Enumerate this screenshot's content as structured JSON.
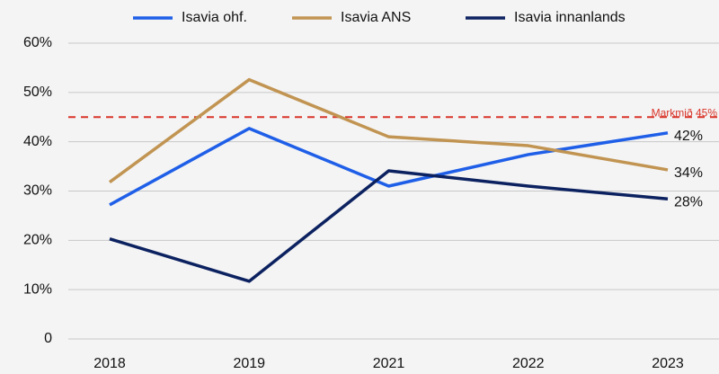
{
  "chart_data": {
    "type": "line",
    "categories": [
      "2018",
      "2019",
      "2021",
      "2022",
      "2023"
    ],
    "series": [
      {
        "name": "Isavia ohf.",
        "color": "#1f5fe8",
        "values": [
          27.2,
          42.7,
          31,
          37.4,
          41.8
        ],
        "value_labels": [
          null,
          null,
          null,
          null,
          "42%"
        ]
      },
      {
        "name": "Isavia ANS",
        "color": "#c19452",
        "values": [
          31.8,
          52.6,
          41,
          39.2,
          34.3
        ],
        "value_labels": [
          null,
          null,
          null,
          null,
          "34%"
        ]
      },
      {
        "name": "Isavia innanlands",
        "color": "#0c2260",
        "values": [
          20.3,
          11.7,
          34.1,
          31,
          28.4
        ],
        "value_labels": [
          null,
          null,
          null,
          null,
          "28%"
        ]
      }
    ],
    "target": {
      "value": 45,
      "label": "Markmið 45%",
      "color": "#d9352a"
    },
    "ylim": [
      0,
      60
    ],
    "yticks": [
      0,
      {
        "value": 10,
        "label": "10%"
      },
      {
        "value": 20,
        "label": "20%"
      },
      {
        "value": 30,
        "label": "30%"
      },
      {
        "value": 40,
        "label": "40%"
      },
      {
        "value": 50,
        "label": "50%"
      },
      {
        "value": 60,
        "label": "60%"
      }
    ],
    "grid": true,
    "legend": "top"
  }
}
